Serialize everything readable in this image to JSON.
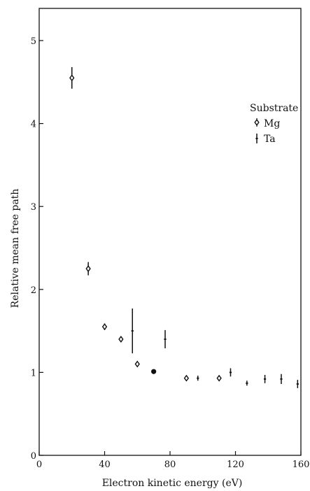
{
  "chart_data": {
    "type": "scatter",
    "xlabel": "Electron kinetic energy (eV)",
    "ylabel": "Relative mean free path",
    "xlim": [
      0,
      160
    ],
    "ylim": [
      0,
      5.3
    ],
    "x_ticks": [
      0,
      40,
      80,
      120,
      160
    ],
    "y_ticks": [
      0,
      1,
      2,
      3,
      4,
      5
    ],
    "legend": {
      "title": "Substrate",
      "placement": "top-right",
      "entries": [
        "Mg",
        "Ta"
      ]
    },
    "series": [
      {
        "name": "Mg",
        "marker": "open-diamond-errorbar",
        "points": [
          {
            "x": 20,
            "y": 4.55,
            "err": 0.13
          },
          {
            "x": 30,
            "y": 2.25,
            "err": 0.08
          },
          {
            "x": 40,
            "y": 1.55,
            "err": 0.04
          },
          {
            "x": 50,
            "y": 1.4,
            "err": 0.03
          },
          {
            "x": 60,
            "y": 1.1,
            "err": 0.03
          },
          {
            "x": 90,
            "y": 0.93,
            "err": 0.03
          },
          {
            "x": 110,
            "y": 0.93,
            "err": 0.03
          }
        ]
      },
      {
        "name": "Ta",
        "marker": "bar-errorbar",
        "points": [
          {
            "x": 57,
            "y": 1.5,
            "err": 0.27
          },
          {
            "x": 77,
            "y": 1.4,
            "err": 0.11
          },
          {
            "x": 97,
            "y": 0.93,
            "err": 0.03
          },
          {
            "x": 117,
            "y": 1.0,
            "err": 0.05
          },
          {
            "x": 127,
            "y": 0.87,
            "err": 0.03
          },
          {
            "x": 138,
            "y": 0.92,
            "err": 0.05
          },
          {
            "x": 148,
            "y": 0.92,
            "err": 0.06
          },
          {
            "x": 158,
            "y": 0.86,
            "err": 0.05
          }
        ]
      },
      {
        "name": "",
        "marker": "filled-circle",
        "points": [
          {
            "x": 70,
            "y": 1.01,
            "err": 0
          }
        ]
      }
    ]
  }
}
